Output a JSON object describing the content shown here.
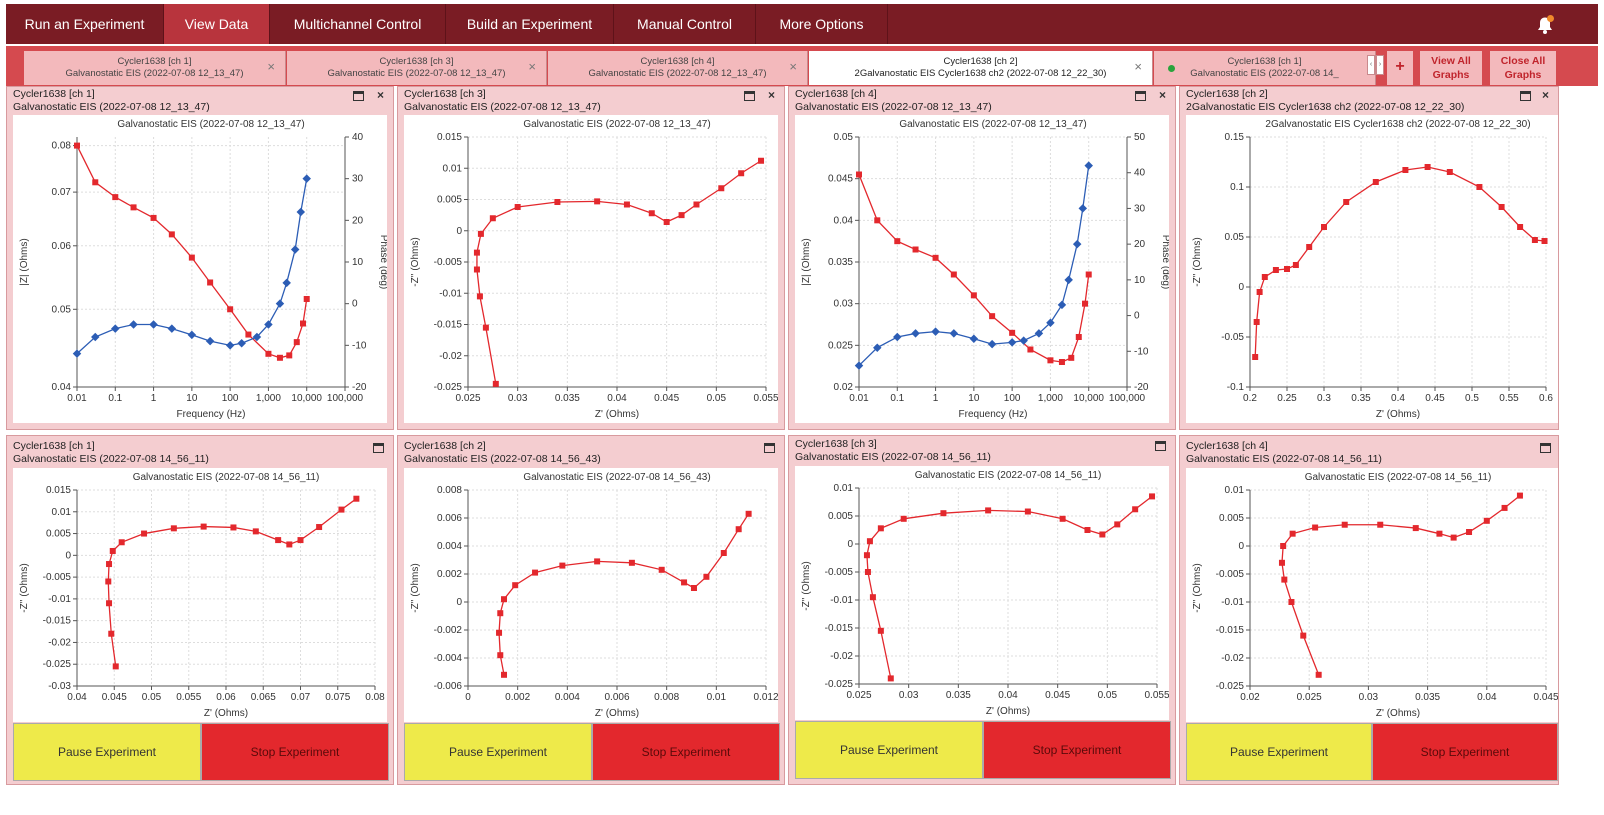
{
  "nav": {
    "tabs": [
      "Run an Experiment",
      "View Data",
      "Multichannel Control",
      "Build an Experiment",
      "Manual Control",
      "More Options"
    ],
    "active": 1,
    "bell_icon": "bell-icon"
  },
  "data_tabs": [
    {
      "line1": "Cycler1638 [ch 1]",
      "line2": "Galvanostatic EIS (2022-07-08 12_13_47)"
    },
    {
      "line1": "Cycler1638 [ch 3]",
      "line2": "Galvanostatic EIS (2022-07-08 12_13_47)"
    },
    {
      "line1": "Cycler1638 [ch 4]",
      "line2": "Galvanostatic EIS (2022-07-08 12_13_47)"
    },
    {
      "line1": "Cycler1638 [ch 2]",
      "line2": "2Galvanostatic EIS Cycler1638 ch2 (2022-07-08 12_22_30)"
    },
    {
      "line1": "Cycler1638 [ch 1]",
      "line2": "Galvanostatic EIS (2022-07-08 14_"
    }
  ],
  "tab_actions": {
    "plus": "+",
    "view_all_1": "View All",
    "view_all_2": "Graphs",
    "close_all_1": "Close All",
    "close_all_2": "Graphs",
    "close_x": "×"
  },
  "buttons": {
    "pause": "Pause Experiment",
    "stop": "Stop Experiment"
  },
  "colors": {
    "accent": "#7a1c24",
    "active": "#b8343d",
    "strip": "#d54a4f",
    "panel": "#f4cdd0",
    "red_series": "#e3282d",
    "blue_series": "#2c5db5",
    "pause": "#eeea4a"
  },
  "panels": [
    {
      "h1": "Cycler1638 [ch 1]",
      "h2": "Galvanostatic EIS (2022-07-08 12_13_47)",
      "title": "Galvanostatic EIS (2022-07-08 12_13_47)",
      "xlabel": "Frequency (Hz)",
      "ylabel": "|Z| (Ohms)",
      "y2label": "Phase (deg)"
    },
    {
      "h1": "Cycler1638 [ch 3]",
      "h2": "Galvanostatic EIS (2022-07-08 12_13_47)",
      "title": "Galvanostatic EIS (2022-07-08 12_13_47)",
      "xlabel": "Z' (Ohms)",
      "ylabel": "-Z'' (Ohms)"
    },
    {
      "h1": "Cycler1638 [ch 4]",
      "h2": "Galvanostatic EIS (2022-07-08 12_13_47)",
      "title": "Galvanostatic EIS (2022-07-08 12_13_47)",
      "xlabel": "Frequency (Hz)",
      "ylabel": "|Z| (Ohms)",
      "y2label": "Phase (deg)"
    },
    {
      "h1": "Cycler1638 [ch 2]",
      "h2": "2Galvanostatic EIS Cycler1638 ch2 (2022-07-08 12_22_30)",
      "title": "2Galvanostatic EIS Cycler1638 ch2 (2022-07-08 12_22_30)",
      "xlabel": "Z' (Ohms)",
      "ylabel": "-Z'' (Ohms)"
    },
    {
      "h1": "Cycler1638 [ch 1]",
      "h2": "Galvanostatic EIS (2022-07-08 14_56_11)",
      "title": "Galvanostatic EIS (2022-07-08 14_56_11)",
      "xlabel": "Z' (Ohms)",
      "ylabel": "-Z'' (Ohms)"
    },
    {
      "h1": "Cycler1638 [ch 2]",
      "h2": "Galvanostatic EIS (2022-07-08 14_56_43)",
      "title": "Galvanostatic EIS (2022-07-08 14_56_43)",
      "xlabel": "Z' (Ohms)",
      "ylabel": "-Z'' (Ohms)"
    },
    {
      "h1": "Cycler1638 [ch 3]",
      "h2": "Galvanostatic EIS (2022-07-08 14_56_11)",
      "title": "Galvanostatic EIS (2022-07-08 14_56_11)",
      "xlabel": "Z' (Ohms)",
      "ylabel": "-Z'' (Ohms)"
    },
    {
      "h1": "Cycler1638 [ch 4]",
      "h2": "Galvanostatic EIS (2022-07-08 14_56_11)",
      "title": "Galvanostatic EIS (2022-07-08 14_56_11)",
      "xlabel": "Z' (Ohms)",
      "ylabel": "-Z'' (Ohms)"
    }
  ],
  "chart_data": [
    {
      "type": "line",
      "title": "Galvanostatic EIS (2022-07-08 12_13_47)",
      "xlabel": "Frequency (Hz)",
      "ylabel": "|Z| (Ohms)",
      "y2label": "Phase (deg)",
      "xscale": "log",
      "xticks": [
        "0.01",
        "0.1",
        "1",
        "10",
        "100",
        "1,000",
        "10,000",
        "100,000"
      ],
      "xlim": [
        0.01,
        100000
      ],
      "yscale": "log",
      "ylim": [
        0.04,
        0.082
      ],
      "yticks": [
        "0.04",
        "0.05",
        "0.06",
        "0.07",
        "0.08"
      ],
      "y2lim": [
        -20,
        40
      ],
      "y2ticks": [
        "-20",
        "-10",
        "0",
        "10",
        "20",
        "30",
        "40"
      ],
      "series": [
        {
          "axis": "y",
          "color": "red",
          "x": [
            0.01,
            0.03,
            0.1,
            0.3,
            1,
            3,
            10,
            30,
            100,
            300,
            1000,
            2000,
            3500,
            5500,
            8000,
            10000
          ],
          "y": [
            0.08,
            0.072,
            0.069,
            0.067,
            0.065,
            0.062,
            0.058,
            0.054,
            0.05,
            0.0465,
            0.044,
            0.0435,
            0.0438,
            0.0455,
            0.048,
            0.0515
          ]
        },
        {
          "axis": "y2",
          "color": "blue",
          "x": [
            0.01,
            0.03,
            0.1,
            0.3,
            1,
            3,
            10,
            30,
            100,
            200,
            500,
            1000,
            2000,
            3000,
            5000,
            7000,
            10000
          ],
          "y": [
            -12,
            -8,
            -6,
            -5,
            -5,
            -6,
            -7.5,
            -9,
            -10,
            -9.5,
            -8,
            -5,
            0,
            5,
            13,
            22,
            30
          ]
        }
      ]
    },
    {
      "type": "scatter",
      "title": "Galvanostatic EIS (2022-07-08 12_13_47)",
      "xlabel": "Z' (Ohms)",
      "ylabel": "-Z'' (Ohms)",
      "xlim": [
        0.025,
        0.055
      ],
      "xticks": [
        "0.025",
        "0.03",
        "0.035",
        "0.04",
        "0.045",
        "0.05",
        "0.055"
      ],
      "ylim": [
        -0.025,
        0.015
      ],
      "yticks": [
        "-0.025",
        "-0.02",
        "-0.015",
        "-0.01",
        "-0.005",
        "0",
        "0.005",
        "0.01",
        "0.015"
      ],
      "series": [
        {
          "color": "red",
          "x": [
            0.0278,
            0.0268,
            0.0262,
            0.0259,
            0.0259,
            0.0263,
            0.0275,
            0.03,
            0.034,
            0.038,
            0.041,
            0.0435,
            0.045,
            0.0465,
            0.048,
            0.0505,
            0.0525,
            0.0545
          ],
          "y": [
            -0.0245,
            -0.0155,
            -0.0105,
            -0.0062,
            -0.0035,
            -0.0005,
            0.002,
            0.0038,
            0.0046,
            0.0047,
            0.0042,
            0.0028,
            0.0014,
            0.0025,
            0.0042,
            0.0068,
            0.0092,
            0.0112
          ]
        }
      ]
    },
    {
      "type": "line",
      "title": "Galvanostatic EIS (2022-07-08 12_13_47)",
      "xlabel": "Frequency (Hz)",
      "ylabel": "|Z| (Ohms)",
      "y2label": "Phase (deg)",
      "xscale": "log",
      "xticks": [
        "0.01",
        "0.1",
        "1",
        "10",
        "100",
        "1,000",
        "10,000",
        "100,000"
      ],
      "xlim": [
        0.01,
        100000
      ],
      "ylim": [
        0.02,
        0.05
      ],
      "yticks": [
        "0.02",
        "0.025",
        "0.03",
        "0.035",
        "0.04",
        "0.045",
        "0.05"
      ],
      "y2lim": [
        -20,
        50
      ],
      "y2ticks": [
        "-20",
        "-10",
        "0",
        "10",
        "20",
        "30",
        "40",
        "50"
      ],
      "series": [
        {
          "axis": "y",
          "color": "red",
          "x": [
            0.01,
            0.03,
            0.1,
            0.3,
            1,
            3,
            10,
            30,
            100,
            300,
            1000,
            2000,
            3500,
            5500,
            8000,
            10000
          ],
          "y": [
            0.0455,
            0.04,
            0.0375,
            0.0365,
            0.0355,
            0.0335,
            0.031,
            0.0285,
            0.0265,
            0.0245,
            0.0232,
            0.023,
            0.0235,
            0.026,
            0.03,
            0.0335
          ]
        },
        {
          "axis": "y2",
          "color": "blue",
          "x": [
            0.01,
            0.03,
            0.1,
            0.3,
            1,
            3,
            10,
            30,
            100,
            200,
            500,
            1000,
            2000,
            3000,
            5000,
            7000,
            10000
          ],
          "y": [
            -14,
            -9,
            -6,
            -5,
            -4.5,
            -5,
            -6.5,
            -8,
            -7.5,
            -7,
            -5,
            -2,
            3,
            10,
            20,
            30,
            42
          ]
        }
      ]
    },
    {
      "type": "scatter",
      "title": "2Galvanostatic EIS Cycler1638 ch2 (2022-07-08 12_22_30)",
      "xlabel": "Z' (Ohms)",
      "ylabel": "-Z'' (Ohms)",
      "xlim": [
        0.2,
        0.6
      ],
      "xticks": [
        "0.2",
        "0.25",
        "0.3",
        "0.35",
        "0.4",
        "0.45",
        "0.5",
        "0.55",
        "0.6"
      ],
      "ylim": [
        -0.1,
        0.15
      ],
      "yticks": [
        "-0.1",
        "-0.05",
        "0",
        "0.05",
        "0.1",
        "0.15"
      ],
      "series": [
        {
          "color": "red",
          "x": [
            0.207,
            0.209,
            0.213,
            0.22,
            0.235,
            0.25,
            0.262,
            0.28,
            0.3,
            0.33,
            0.37,
            0.41,
            0.44,
            0.47,
            0.51,
            0.54,
            0.565,
            0.585,
            0.598
          ],
          "y": [
            -0.07,
            -0.035,
            -0.005,
            0.01,
            0.017,
            0.018,
            0.022,
            0.04,
            0.06,
            0.085,
            0.105,
            0.117,
            0.12,
            0.115,
            0.1,
            0.08,
            0.06,
            0.047,
            0.046
          ]
        }
      ]
    },
    {
      "type": "scatter",
      "title": "Galvanostatic EIS (2022-07-08 14_56_11)",
      "xlabel": "Z' (Ohms)",
      "ylabel": "-Z'' (Ohms)",
      "xlim": [
        0.04,
        0.08
      ],
      "xticks": [
        "0.04",
        "0.045",
        "0.05",
        "0.055",
        "0.06",
        "0.065",
        "0.07",
        "0.075",
        "0.08"
      ],
      "ylim": [
        -0.03,
        0.015
      ],
      "yticks": [
        "-0.03",
        "-0.025",
        "-0.02",
        "-0.015",
        "-0.01",
        "-0.005",
        "0",
        "0.005",
        "0.01",
        "0.015"
      ],
      "series": [
        {
          "color": "red",
          "x": [
            0.0452,
            0.0446,
            0.0443,
            0.0442,
            0.0443,
            0.0448,
            0.046,
            0.049,
            0.053,
            0.057,
            0.061,
            0.064,
            0.067,
            0.0685,
            0.07,
            0.0725,
            0.0755,
            0.0775
          ],
          "y": [
            -0.0255,
            -0.018,
            -0.011,
            -0.006,
            -0.002,
            0.001,
            0.003,
            0.005,
            0.0062,
            0.0066,
            0.0064,
            0.0055,
            0.0035,
            0.0025,
            0.0035,
            0.0065,
            0.0105,
            0.013
          ]
        }
      ]
    },
    {
      "type": "scatter",
      "title": "Galvanostatic EIS (2022-07-08 14_56_43)",
      "xlabel": "Z' (Ohms)",
      "ylabel": "-Z'' (Ohms)",
      "xlim": [
        0,
        0.012
      ],
      "xticks": [
        "0",
        "0.002",
        "0.004",
        "0.006",
        "0.008",
        "0.01",
        "0.012"
      ],
      "ylim": [
        -0.006,
        0.008
      ],
      "yticks": [
        "-0.006",
        "-0.004",
        "-0.002",
        "0",
        "0.002",
        "0.004",
        "0.006",
        "0.008"
      ],
      "series": [
        {
          "color": "red",
          "x": [
            0.00145,
            0.0013,
            0.00125,
            0.0013,
            0.00145,
            0.0019,
            0.0027,
            0.0038,
            0.0052,
            0.0066,
            0.0078,
            0.0087,
            0.0091,
            0.0096,
            0.0103,
            0.0109,
            0.0113
          ],
          "y": [
            -0.0052,
            -0.0038,
            -0.0022,
            -0.0008,
            0.0002,
            0.0012,
            0.0021,
            0.0026,
            0.0029,
            0.0028,
            0.0023,
            0.0014,
            0.001,
            0.0018,
            0.0035,
            0.0052,
            0.0063
          ]
        }
      ]
    },
    {
      "type": "scatter",
      "title": "Galvanostatic EIS (2022-07-08 14_56_11)",
      "xlabel": "Z' (Ohms)",
      "ylabel": "-Z'' (Ohms)",
      "xlim": [
        0.025,
        0.055
      ],
      "xticks": [
        "0.025",
        "0.03",
        "0.035",
        "0.04",
        "0.045",
        "0.05",
        "0.055"
      ],
      "ylim": [
        -0.025,
        0.01
      ],
      "yticks": [
        "-0.025",
        "-0.02",
        "-0.015",
        "-0.01",
        "-0.005",
        "0",
        "0.005",
        "0.01"
      ],
      "series": [
        {
          "color": "red",
          "x": [
            0.0282,
            0.0272,
            0.0264,
            0.0259,
            0.0258,
            0.0261,
            0.0272,
            0.0295,
            0.0335,
            0.038,
            0.042,
            0.0455,
            0.048,
            0.0495,
            0.051,
            0.0528,
            0.0545
          ],
          "y": [
            -0.024,
            -0.0155,
            -0.0095,
            -0.005,
            -0.002,
            0.0005,
            0.0028,
            0.0045,
            0.0055,
            0.006,
            0.0058,
            0.0045,
            0.0025,
            0.0017,
            0.0035,
            0.0062,
            0.0085
          ]
        }
      ]
    },
    {
      "type": "scatter",
      "title": "Galvanostatic EIS (2022-07-08 14_56_11)",
      "xlabel": "Z' (Ohms)",
      "ylabel": "-Z'' (Ohms)",
      "xlim": [
        0.02,
        0.045
      ],
      "xticks": [
        "0.02",
        "0.025",
        "0.03",
        "0.035",
        "0.04",
        "0.045"
      ],
      "ylim": [
        -0.025,
        0.01
      ],
      "yticks": [
        "-0.025",
        "-0.02",
        "-0.015",
        "-0.01",
        "-0.005",
        "0",
        "0.005",
        "0.01"
      ],
      "series": [
        {
          "color": "red",
          "x": [
            0.0258,
            0.0245,
            0.0235,
            0.0229,
            0.0227,
            0.0228,
            0.0236,
            0.0255,
            0.028,
            0.031,
            0.034,
            0.036,
            0.0372,
            0.0385,
            0.04,
            0.0415,
            0.0428
          ],
          "y": [
            -0.023,
            -0.016,
            -0.01,
            -0.006,
            -0.003,
            0,
            0.0022,
            0.0033,
            0.0038,
            0.0038,
            0.0032,
            0.0022,
            0.0015,
            0.0025,
            0.0045,
            0.0068,
            0.009
          ]
        }
      ]
    }
  ]
}
